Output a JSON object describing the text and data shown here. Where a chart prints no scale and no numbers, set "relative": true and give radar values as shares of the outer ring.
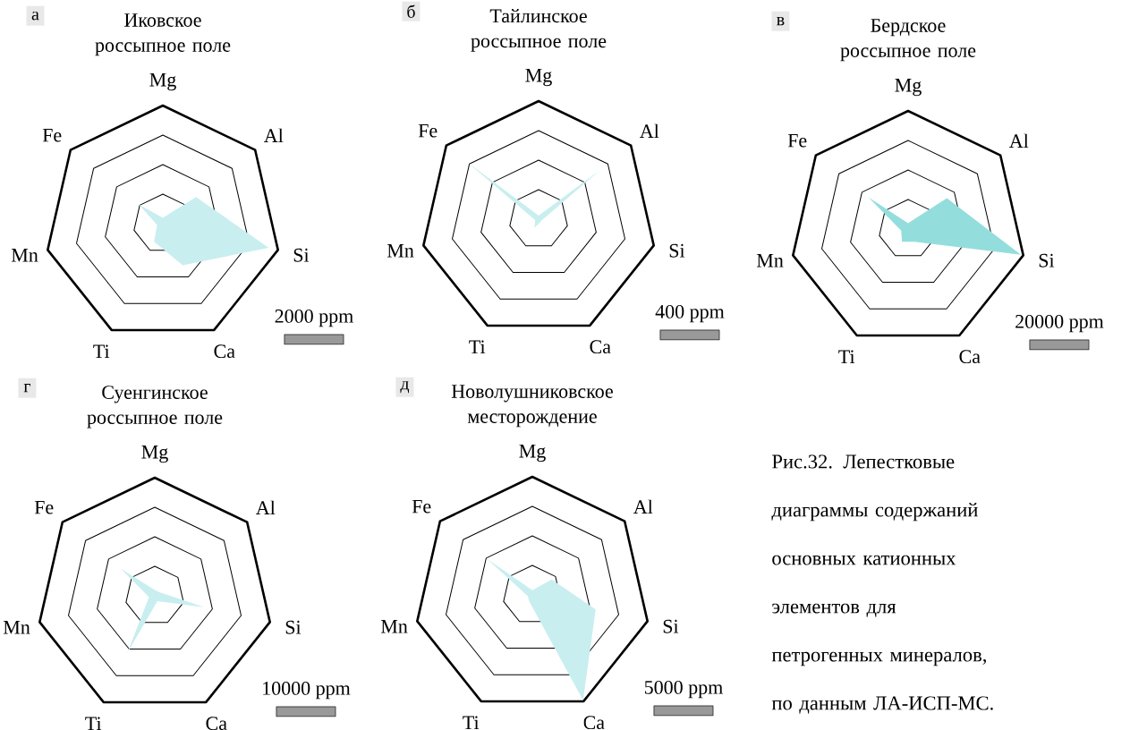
{
  "chart_data": [
    {
      "type": "radar",
      "title": "Иковское россыпное поле",
      "categories": [
        "Mg",
        "Al",
        "Si",
        "Ca",
        "Ti",
        "Mn",
        "Fe"
      ],
      "relative": true,
      "grid": true,
      "annotations": [
        "а",
        "2000 ppm"
      ],
      "series": [
        {
          "color": "#c8eef0",
          "values": [
            0.05,
            0.36,
            0.92,
            0.39,
            0.17,
            0.05,
            0.26
          ]
        }
      ]
    },
    {
      "type": "radar",
      "title": "Тайлинское россыпное поле",
      "categories": [
        "Mg",
        "Al",
        "Si",
        "Ca",
        "Ti",
        "Mn",
        "Fe"
      ],
      "relative": true,
      "grid": true,
      "annotations": [
        "б",
        "400 ppm"
      ],
      "series": [
        {
          "color": "#c8eef0",
          "values": [
            0.03,
            0.67,
            0.03,
            0.03,
            0.08,
            0.03,
            0.77
          ]
        }
      ]
    },
    {
      "type": "radar",
      "title": "Бердское россыпное поле",
      "categories": [
        "Mg",
        "Al",
        "Si",
        "Ca",
        "Ti",
        "Mn",
        "Fe"
      ],
      "relative": true,
      "grid": true,
      "annotations": [
        "в",
        "20000 ppm"
      ],
      "series": [
        {
          "color": "#93dedd",
          "values": [
            0.05,
            0.42,
            0.98,
            0.12,
            0.12,
            0.06,
            0.43
          ]
        }
      ]
    },
    {
      "type": "radar",
      "title": "Суенгинское россыпное поле",
      "categories": [
        "Mg",
        "Al",
        "Si",
        "Ca",
        "Ti",
        "Mn",
        "Fe"
      ],
      "relative": true,
      "grid": true,
      "annotations": [
        "г",
        "10000 ppm"
      ],
      "series": [
        {
          "color": "#c8eef0",
          "values": [
            0.05,
            0.05,
            0.43,
            0.05,
            0.54,
            0.05,
            0.37
          ]
        }
      ]
    },
    {
      "type": "radar",
      "title": "Новолушниковское месторождение",
      "categories": [
        "Mg",
        "Al",
        "Si",
        "Ca",
        "Ti",
        "Mn",
        "Fe"
      ],
      "relative": true,
      "grid": true,
      "annotations": [
        "д",
        "5000 ppm"
      ],
      "series": [
        {
          "color": "#c8eef0",
          "values": [
            0.04,
            0.21,
            0.55,
            0.99,
            0.06,
            0.04,
            0.49
          ]
        }
      ]
    },
    {
      "type": "other",
      "annotations": [
        "Рис.32. Лепестковые диаграммы содержаний основных катионных элементов для петрогенных минералов, по данным ЛА-ИСП-МС."
      ]
    }
  ]
}
